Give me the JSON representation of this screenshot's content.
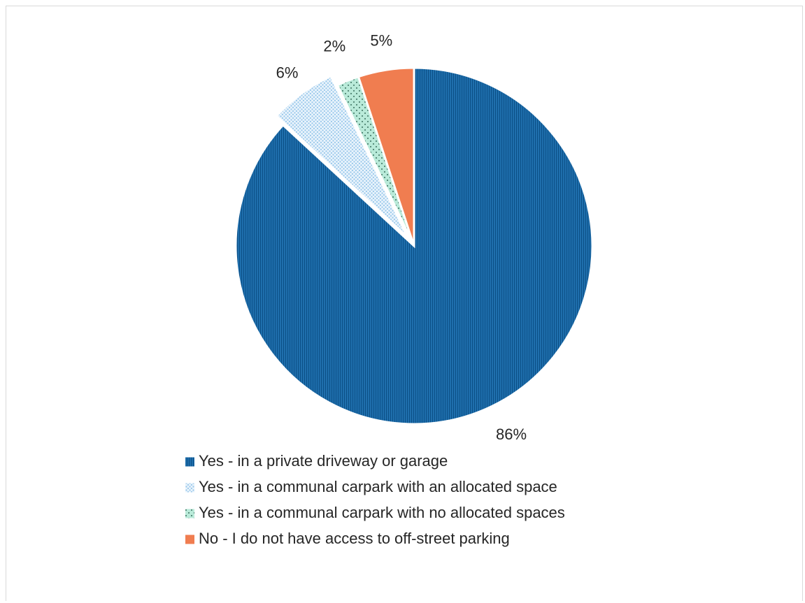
{
  "chart_data": {
    "type": "pie",
    "title": "",
    "categories": [
      "Yes - in a private driveway or garage",
      "Yes - in a communal carpark with an allocated space",
      "Yes - in a communal carpark with no allocated spaces",
      "No - I do not have access to off-street parking"
    ],
    "values": [
      86,
      6,
      2,
      5
    ],
    "data_labels": [
      "86%",
      "6%",
      "2%",
      "5%"
    ],
    "colors": [
      "#1f6fad",
      "#d6e9f8",
      "#a8e3d0",
      "#f07d50"
    ],
    "patterns": [
      "vertical-lines",
      "dots-blue",
      "dots-green",
      "solid"
    ],
    "exploded_slice_index": 1,
    "legend_position": "bottom",
    "start_angle_deg": 0,
    "direction": "clockwise"
  }
}
